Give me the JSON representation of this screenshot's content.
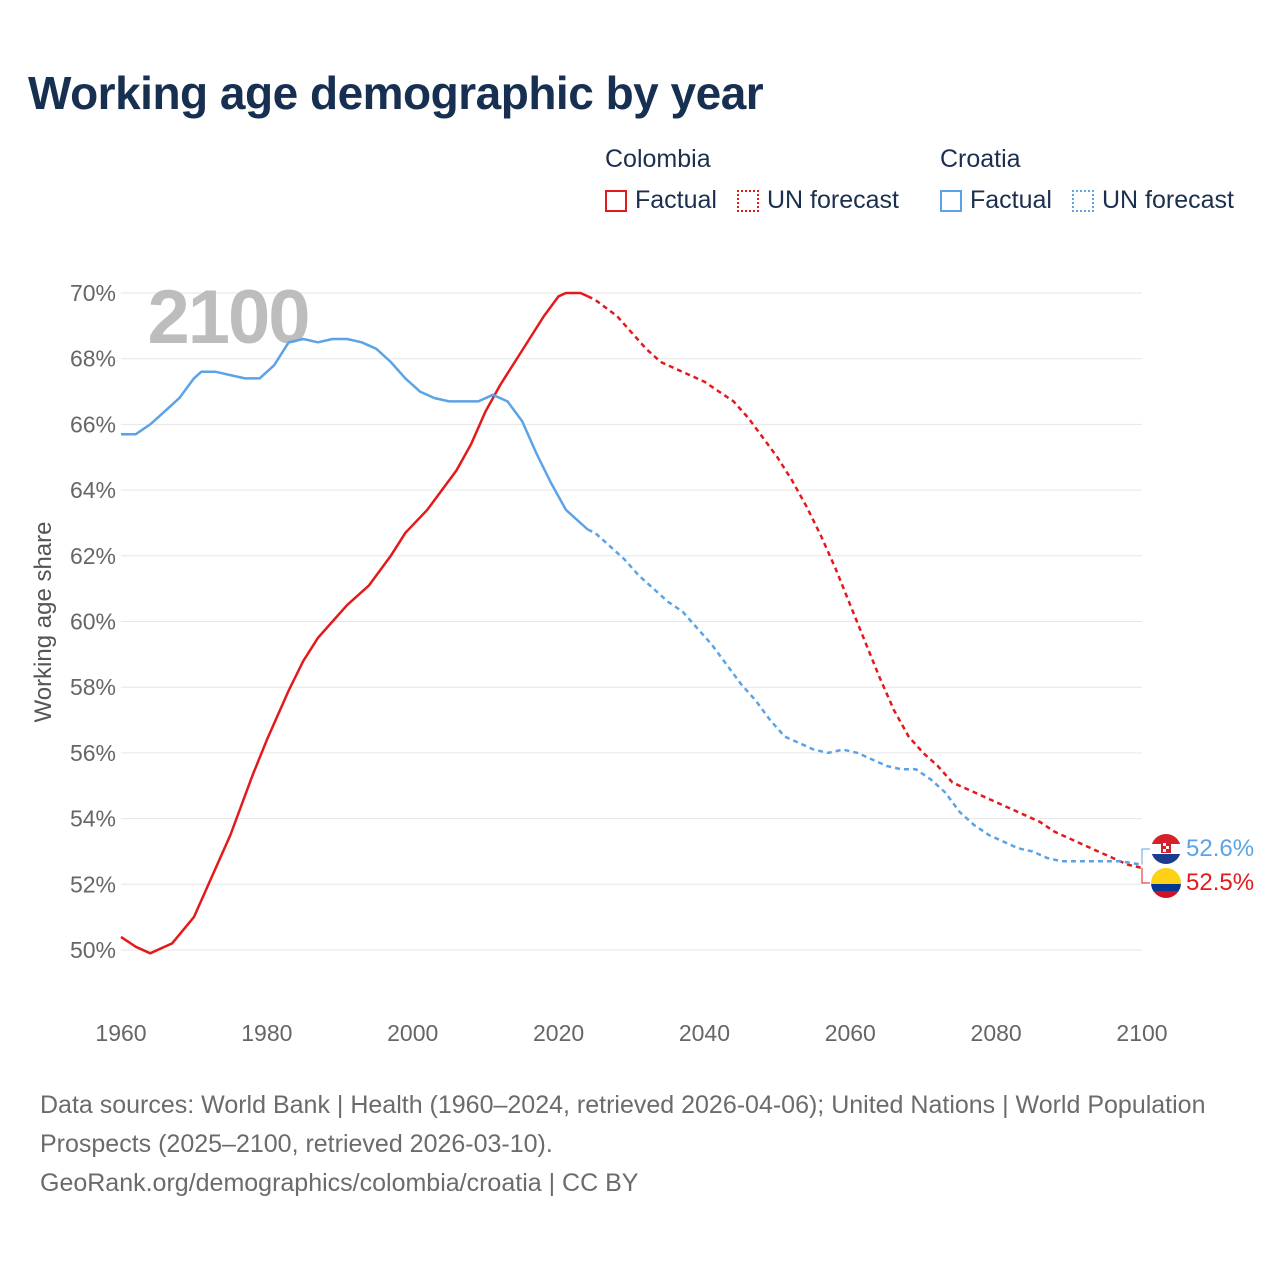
{
  "title": "Working age demographic by year",
  "legend": {
    "groups": [
      {
        "name": "Colombia",
        "color": "#e31a1c",
        "factual": "Factual",
        "forecast": "UN forecast"
      },
      {
        "name": "Croatia",
        "color": "#5ba3e6",
        "factual": "Factual",
        "forecast": "UN forecast"
      }
    ]
  },
  "year_watermark": "2100",
  "chart_data": {
    "type": "line",
    "title": "Working age demographic by year",
    "xlabel": "",
    "ylabel": "Working age share",
    "xlim": [
      1960,
      2100
    ],
    "ylim": [
      49,
      70.5
    ],
    "x_ticks": [
      1960,
      1980,
      2000,
      2020,
      2040,
      2060,
      2080,
      2100
    ],
    "y_ticks": [
      50,
      52,
      54,
      56,
      58,
      60,
      62,
      64,
      66,
      68,
      70
    ],
    "y_tick_labels": [
      "50%",
      "52%",
      "54%",
      "56%",
      "58%",
      "60%",
      "62%",
      "64%",
      "66%",
      "68%",
      "70%"
    ],
    "factual_end_year": 2024,
    "series": [
      {
        "name": "Colombia",
        "color": "#e31a1c",
        "end_label": "52.5%",
        "points": [
          [
            1960,
            50.4
          ],
          [
            1962,
            50.1
          ],
          [
            1964,
            49.9
          ],
          [
            1967,
            50.2
          ],
          [
            1970,
            51.0
          ],
          [
            1972,
            52.0
          ],
          [
            1975,
            53.5
          ],
          [
            1978,
            55.3
          ],
          [
            1980,
            56.4
          ],
          [
            1983,
            57.9
          ],
          [
            1985,
            58.8
          ],
          [
            1987,
            59.5
          ],
          [
            1989,
            60.0
          ],
          [
            1991,
            60.5
          ],
          [
            1994,
            61.1
          ],
          [
            1997,
            62.0
          ],
          [
            1999,
            62.7
          ],
          [
            2002,
            63.4
          ],
          [
            2004,
            64.0
          ],
          [
            2006,
            64.6
          ],
          [
            2008,
            65.4
          ],
          [
            2010,
            66.4
          ],
          [
            2012,
            67.2
          ],
          [
            2014,
            67.9
          ],
          [
            2016,
            68.6
          ],
          [
            2018,
            69.3
          ],
          [
            2020,
            69.9
          ],
          [
            2021,
            70.0
          ],
          [
            2022,
            70.0
          ],
          [
            2023,
            70.0
          ],
          [
            2024,
            69.9
          ],
          [
            2025,
            69.8
          ],
          [
            2028,
            69.3
          ],
          [
            2030,
            68.8
          ],
          [
            2032,
            68.3
          ],
          [
            2034,
            67.9
          ],
          [
            2036,
            67.7
          ],
          [
            2038,
            67.5
          ],
          [
            2040,
            67.3
          ],
          [
            2042,
            67.0
          ],
          [
            2044,
            66.7
          ],
          [
            2046,
            66.2
          ],
          [
            2048,
            65.6
          ],
          [
            2050,
            65.0
          ],
          [
            2052,
            64.3
          ],
          [
            2054,
            63.5
          ],
          [
            2056,
            62.6
          ],
          [
            2058,
            61.6
          ],
          [
            2060,
            60.5
          ],
          [
            2062,
            59.4
          ],
          [
            2064,
            58.3
          ],
          [
            2066,
            57.3
          ],
          [
            2068,
            56.5
          ],
          [
            2070,
            56.0
          ],
          [
            2072,
            55.6
          ],
          [
            2074,
            55.1
          ],
          [
            2076,
            54.9
          ],
          [
            2078,
            54.7
          ],
          [
            2080,
            54.5
          ],
          [
            2082,
            54.3
          ],
          [
            2084,
            54.1
          ],
          [
            2086,
            53.9
          ],
          [
            2088,
            53.6
          ],
          [
            2090,
            53.4
          ],
          [
            2092,
            53.2
          ],
          [
            2094,
            53.0
          ],
          [
            2096,
            52.8
          ],
          [
            2098,
            52.6
          ],
          [
            2100,
            52.5
          ]
        ]
      },
      {
        "name": "Croatia",
        "color": "#5ba3e6",
        "end_label": "52.6%",
        "points": [
          [
            1960,
            65.7
          ],
          [
            1962,
            65.7
          ],
          [
            1964,
            66.0
          ],
          [
            1966,
            66.4
          ],
          [
            1968,
            66.8
          ],
          [
            1970,
            67.4
          ],
          [
            1971,
            67.6
          ],
          [
            1973,
            67.6
          ],
          [
            1975,
            67.5
          ],
          [
            1977,
            67.4
          ],
          [
            1979,
            67.4
          ],
          [
            1981,
            67.8
          ],
          [
            1983,
            68.5
          ],
          [
            1985,
            68.6
          ],
          [
            1987,
            68.5
          ],
          [
            1989,
            68.6
          ],
          [
            1991,
            68.6
          ],
          [
            1993,
            68.5
          ],
          [
            1995,
            68.3
          ],
          [
            1997,
            67.9
          ],
          [
            1999,
            67.4
          ],
          [
            2001,
            67.0
          ],
          [
            2003,
            66.8
          ],
          [
            2005,
            66.7
          ],
          [
            2007,
            66.7
          ],
          [
            2009,
            66.7
          ],
          [
            2011,
            66.9
          ],
          [
            2013,
            66.7
          ],
          [
            2015,
            66.1
          ],
          [
            2017,
            65.1
          ],
          [
            2019,
            64.2
          ],
          [
            2021,
            63.4
          ],
          [
            2023,
            63.0
          ],
          [
            2024,
            62.8
          ],
          [
            2025,
            62.7
          ],
          [
            2027,
            62.3
          ],
          [
            2029,
            61.9
          ],
          [
            2031,
            61.4
          ],
          [
            2033,
            61.0
          ],
          [
            2035,
            60.6
          ],
          [
            2037,
            60.3
          ],
          [
            2039,
            59.8
          ],
          [
            2041,
            59.3
          ],
          [
            2043,
            58.7
          ],
          [
            2045,
            58.1
          ],
          [
            2047,
            57.6
          ],
          [
            2049,
            57.0
          ],
          [
            2051,
            56.5
          ],
          [
            2053,
            56.3
          ],
          [
            2055,
            56.1
          ],
          [
            2057,
            56.0
          ],
          [
            2059,
            56.1
          ],
          [
            2061,
            56.0
          ],
          [
            2063,
            55.8
          ],
          [
            2065,
            55.6
          ],
          [
            2067,
            55.5
          ],
          [
            2069,
            55.5
          ],
          [
            2071,
            55.2
          ],
          [
            2073,
            54.8
          ],
          [
            2075,
            54.2
          ],
          [
            2077,
            53.8
          ],
          [
            2079,
            53.5
          ],
          [
            2081,
            53.3
          ],
          [
            2083,
            53.1
          ],
          [
            2085,
            53.0
          ],
          [
            2087,
            52.8
          ],
          [
            2089,
            52.7
          ],
          [
            2091,
            52.7
          ],
          [
            2093,
            52.7
          ],
          [
            2095,
            52.7
          ],
          [
            2097,
            52.7
          ],
          [
            2100,
            52.6
          ]
        ]
      }
    ]
  },
  "footer": {
    "sources": "Data sources: World Bank | Health (1960–2024, retrieved 2026-04-06); United Nations | World Population Prospects (2025–2100, retrieved 2026-03-10).",
    "url": "GeoRank.org/demographics/colombia/croatia | CC BY"
  }
}
